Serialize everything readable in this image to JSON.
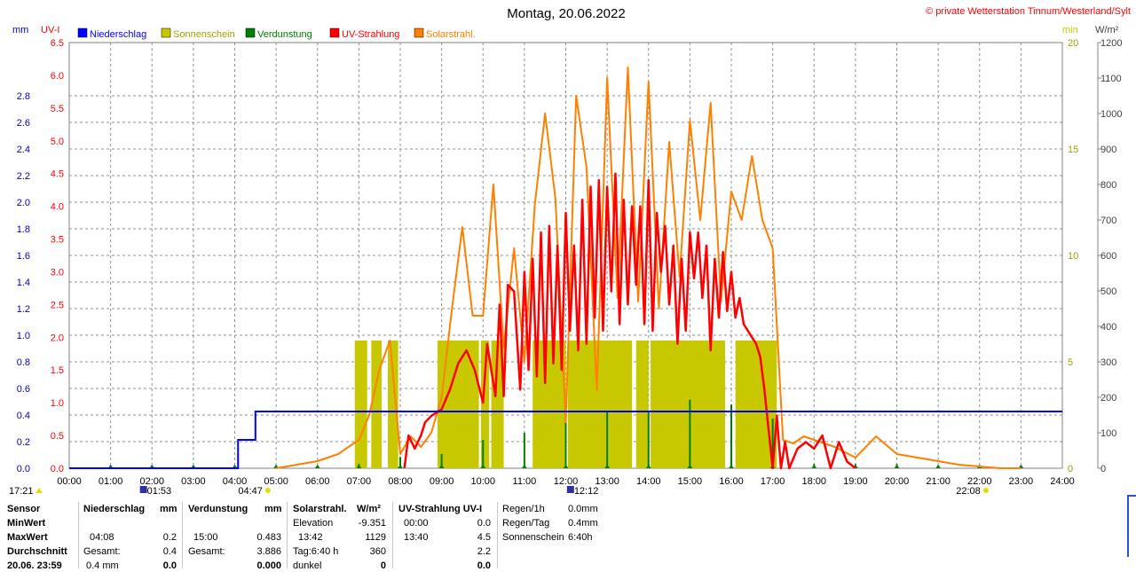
{
  "chart_data": {
    "type": "line",
    "title": "Montag, 20.06.2022",
    "copyright": "© private Wetterstation Tinnum/Westerland/Sylt",
    "axis_units": {
      "rain": "mm",
      "uv": "UV-I",
      "sun": "min",
      "solar": "W/m²"
    },
    "x_ticks": [
      "00:00",
      "01:00",
      "02:00",
      "03:00",
      "04:00",
      "05:00",
      "06:00",
      "07:00",
      "08:00",
      "09:00",
      "10:00",
      "11:00",
      "12:00",
      "13:00",
      "14:00",
      "15:00",
      "16:00",
      "17:00",
      "18:00",
      "19:00",
      "20:00",
      "21:00",
      "22:00",
      "23:00",
      "24:00"
    ],
    "rain_ticks": [
      "0.0",
      "0.2",
      "0.4",
      "0.6",
      "0.8",
      "1.0",
      "1.2",
      "1.4",
      "1.6",
      "1.8",
      "2.0",
      "2.2",
      "2.4",
      "2.6",
      "2.8"
    ],
    "uv_ticks": [
      "0.0",
      "0.5",
      "1.0",
      "1.5",
      "2.0",
      "2.5",
      "3.0",
      "3.5",
      "4.0",
      "4.5",
      "5.0",
      "5.5",
      "6.0",
      "6.5"
    ],
    "sun_ticks": [
      "0",
      "5",
      "10",
      "15",
      "20"
    ],
    "solar_ticks": [
      "0",
      "100",
      "200",
      "300",
      "400",
      "500",
      "600",
      "700",
      "800",
      "900",
      "1000",
      "1100",
      "1200"
    ],
    "uv_range": [
      0,
      6.5
    ],
    "sun_range": [
      0,
      20
    ],
    "solar_range": [
      0,
      1200
    ],
    "grid": true,
    "legend": [
      {
        "label": "Niederschlag",
        "color": "#0000ff"
      },
      {
        "label": "Sonnenschein",
        "color": "#c8c800"
      },
      {
        "label": "Verdunstung",
        "color": "#008000"
      },
      {
        "label": "UV-Strahlung",
        "color": "#ff0000"
      },
      {
        "label": "Solarstrahl.",
        "color": "#ff8000"
      }
    ],
    "rain": {
      "color": "#0000ff",
      "x": [
        0,
        4.08,
        4.08,
        4.5,
        4.5,
        24
      ],
      "y": [
        0,
        0,
        0.2,
        0.2,
        0.4,
        0.4
      ]
    },
    "sunshine": {
      "color": "#c8c800",
      "segments": [
        [
          6.9,
          7.2
        ],
        [
          7.3,
          7.55
        ],
        [
          7.7,
          7.95
        ],
        [
          8.9,
          9.9
        ],
        [
          9.95,
          10.15
        ],
        [
          10.2,
          10.5
        ],
        [
          11.2,
          12.0
        ],
        [
          12.05,
          13.6
        ],
        [
          13.7,
          14.0
        ],
        [
          14.05,
          15.85
        ],
        [
          16.1,
          17.1
        ]
      ],
      "value": 6
    },
    "evaporation": {
      "color": "#008000",
      "spikes": [
        [
          1.0,
          0.02
        ],
        [
          2.0,
          0.02
        ],
        [
          3.0,
          0.02
        ],
        [
          4.0,
          0.02
        ],
        [
          5.0,
          0.02
        ],
        [
          6.0,
          0.02
        ],
        [
          7.0,
          0.03
        ],
        [
          8.0,
          0.08
        ],
        [
          9.0,
          0.1
        ],
        [
          10.0,
          0.2
        ],
        [
          11.0,
          0.25
        ],
        [
          12.0,
          0.4
        ],
        [
          13.0,
          0.4
        ],
        [
          14.0,
          0.4
        ],
        [
          15.0,
          0.483
        ],
        [
          16.0,
          0.45
        ],
        [
          17.0,
          0.35
        ],
        [
          18.0,
          0.03
        ],
        [
          19.0,
          0.03
        ],
        [
          20.0,
          0.03
        ],
        [
          21.0,
          0.02
        ],
        [
          22.0,
          0.02
        ],
        [
          23.0,
          0.02
        ]
      ]
    },
    "uv": {
      "color": "#ff0000",
      "x": [
        8.1,
        8.2,
        8.35,
        8.5,
        8.6,
        8.75,
        9.0,
        9.2,
        9.4,
        9.6,
        9.8,
        10.0,
        10.1,
        10.3,
        10.4,
        10.5,
        10.6,
        10.75,
        10.9,
        11.0,
        11.1,
        11.2,
        11.3,
        11.4,
        11.5,
        11.6,
        11.7,
        11.8,
        11.9,
        12.0,
        12.1,
        12.2,
        12.3,
        12.4,
        12.5,
        12.6,
        12.7,
        12.8,
        12.9,
        13.0,
        13.1,
        13.2,
        13.3,
        13.4,
        13.5,
        13.6,
        13.7,
        13.8,
        13.9,
        14.0,
        14.1,
        14.2,
        14.3,
        14.4,
        14.5,
        14.6,
        14.7,
        14.8,
        14.9,
        15.0,
        15.1,
        15.2,
        15.3,
        15.4,
        15.5,
        15.6,
        15.7,
        15.8,
        15.9,
        16.0,
        16.1,
        16.2,
        16.3,
        16.4,
        16.5,
        16.6,
        16.7,
        16.8,
        16.9,
        17.0,
        17.1,
        17.2,
        17.3,
        17.4,
        17.6,
        17.8,
        18.0,
        18.2,
        18.4,
        18.6,
        18.8,
        19.0
      ],
      "y": [
        0.0,
        0.5,
        0.3,
        0.5,
        0.7,
        0.8,
        0.9,
        1.2,
        1.6,
        1.8,
        1.5,
        1.0,
        1.9,
        1.1,
        2.5,
        1.1,
        2.8,
        2.7,
        1.2,
        3.0,
        1.5,
        3.2,
        1.4,
        3.6,
        1.3,
        3.7,
        1.6,
        3.4,
        1.5,
        3.9,
        2.1,
        3.4,
        1.8,
        4.1,
        1.9,
        4.3,
        2.3,
        4.4,
        2.1,
        4.3,
        2.7,
        4.5,
        2.2,
        4.1,
        2.5,
        4.0,
        2.8,
        4.0,
        2.2,
        4.4,
        2.1,
        3.9,
        3.0,
        3.7,
        2.5,
        3.4,
        1.9,
        3.2,
        2.1,
        3.6,
        2.9,
        3.6,
        2.6,
        3.4,
        1.8,
        3.2,
        2.3,
        3.3,
        2.4,
        3.0,
        2.3,
        2.6,
        2.2,
        2.1,
        2.0,
        1.9,
        1.7,
        1.2,
        0.6,
        0.0,
        0.8,
        0.0,
        0.4,
        0.0,
        0.3,
        0.4,
        0.3,
        0.5,
        0.0,
        0.4,
        0.1,
        0.0
      ]
    },
    "solar": {
      "color": "#ff8000",
      "x": [
        5.0,
        5.5,
        6.0,
        6.5,
        7.0,
        7.25,
        7.5,
        7.75,
        8.0,
        8.25,
        8.5,
        8.75,
        9.0,
        9.25,
        9.5,
        9.75,
        10.0,
        10.25,
        10.5,
        10.75,
        11.0,
        11.25,
        11.5,
        11.75,
        12.0,
        12.25,
        12.5,
        12.75,
        13.0,
        13.25,
        13.5,
        13.75,
        14.0,
        14.25,
        14.5,
        14.75,
        15.0,
        15.25,
        15.5,
        15.75,
        16.0,
        16.25,
        16.5,
        16.75,
        17.0,
        17.25,
        17.5,
        17.75,
        18.0,
        18.5,
        19.0,
        19.5,
        20.0,
        20.5,
        21.0,
        21.5,
        22.0,
        22.5,
        23.0
      ],
      "y": [
        0,
        10,
        20,
        40,
        80,
        150,
        280,
        360,
        40,
        90,
        60,
        100,
        200,
        450,
        680,
        430,
        430,
        800,
        340,
        620,
        300,
        740,
        1000,
        760,
        130,
        1050,
        850,
        220,
        1100,
        480,
        1130,
        470,
        1090,
        450,
        920,
        540,
        980,
        700,
        1030,
        470,
        780,
        700,
        880,
        700,
        620,
        80,
        70,
        90,
        80,
        60,
        30,
        90,
        40,
        30,
        20,
        10,
        5,
        0,
        0
      ]
    },
    "markers": [
      {
        "label": "17:21",
        "x": 0.0
      },
      {
        "label": "01:53",
        "x": 1.88
      },
      {
        "label": "04:47",
        "x": 4.78
      },
      {
        "label": "12:12",
        "x": 12.2
      },
      {
        "label": "22:08",
        "x": 22.13
      }
    ]
  },
  "table": {
    "sensor": {
      "header": "Sensor",
      "rows": [
        "MinWert",
        "MaxWert",
        "Durchschnitt",
        "20.06. 23:59"
      ]
    },
    "rain": {
      "header": "Niederschlag",
      "unit": "mm",
      "max_time": "04:08",
      "max_value": "0.2",
      "total_label": "Gesamt:",
      "total_value": "0.4",
      "last_label": "0.4 mm",
      "last_value": "0.0"
    },
    "evap": {
      "header": "Verdunstung",
      "unit": "mm",
      "max_time": "15:00",
      "max_value": "0.483",
      "total_label": "Gesamt:",
      "total_value": "3.886",
      "last_value": "0.000"
    },
    "solar": {
      "header": "Solarstrahl.",
      "unit": "W/m²",
      "elev_label": "Elevation",
      "elev_value": "-9.351",
      "max_time": "13:42",
      "max_value": "1129",
      "day_label": "Tag:6:40 h",
      "day_value": "360",
      "dark_label": "dunkel",
      "dark_value": "0"
    },
    "uv": {
      "header": "UV-Strahlung UV-I",
      "min_time": "00:00",
      "min_value": "0.0",
      "max_time": "13:40",
      "max_value": "4.5",
      "avg_value": "2.2",
      "last_value": "0.0"
    },
    "summary": [
      {
        "label": "Regen/1h",
        "value": "0.0mm"
      },
      {
        "label": "Regen/Tag",
        "value": "0.4mm"
      },
      {
        "label": "Sonnenschein",
        "value": "6:40h"
      }
    ]
  }
}
